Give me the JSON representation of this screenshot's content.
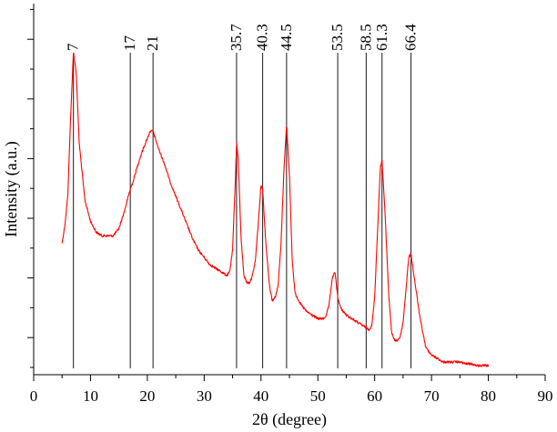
{
  "chart_data": {
    "type": "line",
    "xlabel": "2θ (degree)",
    "ylabel": "Intensity (a.u.)",
    "xlim": [
      0,
      90
    ],
    "x_ticks": [
      0,
      10,
      20,
      30,
      40,
      50,
      60,
      70,
      80,
      90
    ],
    "y_tick_labels_shown": false,
    "grid": false,
    "series": [
      {
        "color": "#ff0000",
        "x": [
          5,
          5.5,
          6,
          6.5,
          7,
          7.5,
          8,
          9,
          10,
          11,
          12,
          13,
          14,
          15,
          16,
          16.5,
          17,
          17.5,
          18,
          19,
          20,
          20.5,
          21,
          22,
          23,
          24,
          25,
          26,
          27,
          28,
          29,
          30,
          31,
          32,
          33,
          34,
          34.5,
          35,
          35.5,
          35.7,
          36,
          36.5,
          37,
          37.5,
          38,
          38.5,
          39,
          39.5,
          40,
          40.3,
          40.8,
          41.5,
          42,
          42.5,
          43,
          43.5,
          44,
          44.5,
          45,
          45.5,
          46,
          47,
          48,
          49,
          50,
          51,
          51.5,
          52,
          52.5,
          53,
          53.5,
          54,
          55,
          56,
          57,
          58,
          59,
          59.5,
          60,
          60.5,
          61,
          61.3,
          61.8,
          62.5,
          63,
          63.5,
          64,
          64.5,
          65,
          65.5,
          66,
          66.4,
          67,
          68,
          69,
          70,
          71,
          72,
          73,
          74,
          75,
          76,
          77,
          78,
          79,
          80
        ],
        "y": [
          35,
          40,
          48,
          70,
          88,
          82,
          63,
          47,
          41,
          38,
          37,
          37,
          37,
          39,
          44,
          47,
          50,
          52,
          55,
          60,
          64,
          66,
          66,
          61,
          57,
          52,
          48,
          44,
          40,
          36,
          33,
          31,
          29,
          28,
          27,
          26,
          27,
          33,
          53,
          63,
          58,
          36,
          26,
          24,
          24,
          26,
          30,
          40,
          51,
          50,
          36,
          23,
          19,
          20,
          23,
          34,
          54,
          68,
          54,
          30,
          21,
          18,
          16,
          15,
          14,
          14,
          15,
          18,
          25,
          27,
          20,
          17,
          15,
          14,
          13,
          12,
          11,
          12,
          20,
          38,
          56,
          58,
          44,
          20,
          10,
          8,
          8,
          9,
          13,
          22,
          31,
          32,
          25,
          14,
          6,
          4,
          3,
          2,
          2,
          2,
          2,
          1.5,
          1.5,
          1,
          1,
          1
        ]
      }
    ],
    "peak_lines": [
      {
        "x": 7,
        "label": "7"
      },
      {
        "x": 17,
        "label": "17"
      },
      {
        "x": 21,
        "label": "21"
      },
      {
        "x": 35.7,
        "label": "35.7"
      },
      {
        "x": 40.3,
        "label": "40.3"
      },
      {
        "x": 44.5,
        "label": "44.5"
      },
      {
        "x": 53.5,
        "label": "53.5"
      },
      {
        "x": 58.5,
        "label": "58.5"
      },
      {
        "x": 61.3,
        "label": "61.3"
      },
      {
        "x": 66.4,
        "label": "66.4"
      }
    ]
  }
}
